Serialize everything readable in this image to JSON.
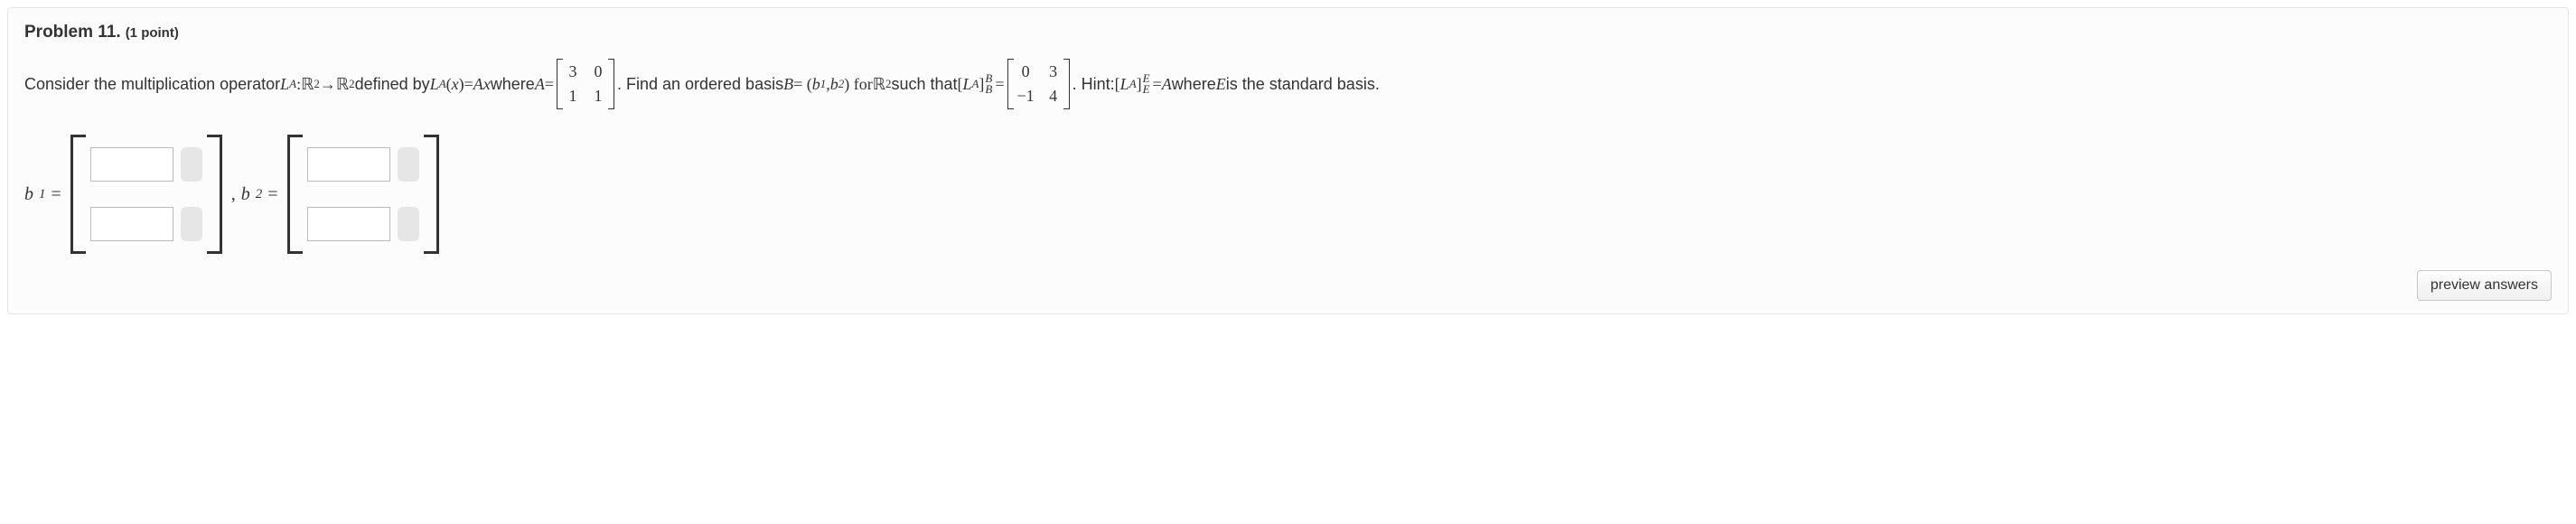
{
  "problem": {
    "number_label": "Problem 11.",
    "points_label": "(1 point)",
    "text": {
      "t1": "Consider the multiplication operator ",
      "LA": "L",
      "LAsub": "A",
      "colon": " : ",
      "R": "ℝ",
      "sq": "2",
      "arrow": " → ",
      "defined": " defined by ",
      "lp": "(",
      "x": "x",
      "rp": ")",
      "eq": " = ",
      "A": "A",
      "where": " where ",
      "matA": {
        "r1c1": "3",
        "r1c2": "0",
        "r2c1": "1",
        "r2c2": "1"
      },
      "t2a": ". Find an ordered basis ",
      "B": "B",
      "eq2": " = (",
      "b1": "b",
      "b1sub": "1",
      "comma1": ", ",
      "b2": "b",
      "b2sub": "2",
      "rp2": ") for ",
      "such": " such that ",
      "brL": "[",
      "brR": "]",
      "matT": {
        "r1c1": "0",
        "r1c2": "3",
        "r2c1": "−1",
        "r2c2": "4"
      },
      "t3": ". Hint: ",
      "E": "E",
      "hint2": " where ",
      "hint3": " is the standard basis."
    },
    "answers": {
      "b1_label_v": "b",
      "b1_label_s": "1",
      "b2_label_v": "b",
      "b2_label_s": "2",
      "eq": " = ",
      "comma": " , "
    },
    "button": "preview answers"
  },
  "style": {
    "border_color": "#e5e5e5",
    "card_bg": "#fcfcfc",
    "input_border": "#bbbbbb",
    "tag_bg": "#e6e6e6",
    "btn_border": "#c8c8c8"
  }
}
